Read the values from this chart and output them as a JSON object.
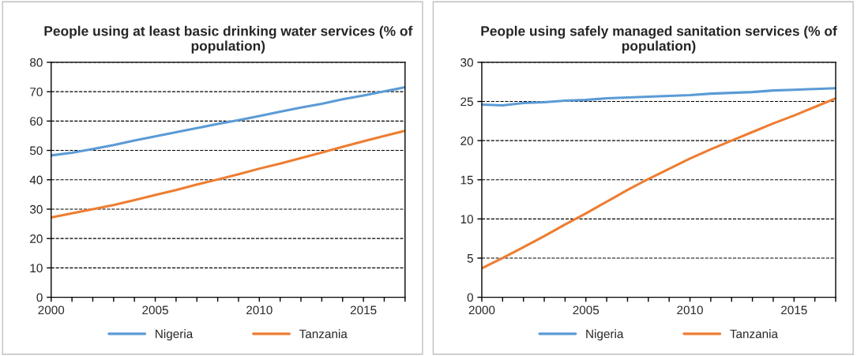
{
  "chart_data": [
    {
      "type": "line",
      "title": "People using at least basic drinking water services (% of population)",
      "x": [
        2000,
        2001,
        2002,
        2003,
        2004,
        2005,
        2006,
        2007,
        2008,
        2009,
        2010,
        2011,
        2012,
        2013,
        2014,
        2015,
        2016,
        2017
      ],
      "series": [
        {
          "name": "Nigeria",
          "color": "#5b9bd5",
          "values": [
            48.3,
            49.2,
            50.5,
            51.8,
            53.4,
            54.8,
            56.2,
            57.6,
            59.0,
            60.3,
            61.7,
            63.2,
            64.6,
            65.9,
            67.4,
            68.7,
            70.1,
            71.5
          ]
        },
        {
          "name": "Tanzania",
          "color": "#ed7d31",
          "values": [
            27.2,
            28.6,
            30.0,
            31.4,
            33.1,
            34.8,
            36.5,
            38.4,
            40.1,
            41.9,
            43.8,
            45.5,
            47.4,
            49.3,
            51.2,
            53.1,
            54.9,
            56.7
          ]
        }
      ],
      "xlim": [
        2000,
        2017
      ],
      "xticks": [
        2000,
        {
          "value": 2001,
          "label": null
        },
        {
          "value": 2002,
          "label": null
        },
        {
          "value": 2003,
          "label": null
        },
        {
          "value": 2004,
          "label": null
        },
        2005,
        {
          "value": 2006,
          "label": null
        },
        {
          "value": 2007,
          "label": null
        },
        {
          "value": 2008,
          "label": null
        },
        {
          "value": 2009,
          "label": null
        },
        2010,
        {
          "value": 2011,
          "label": null
        },
        {
          "value": 2012,
          "label": null
        },
        {
          "value": 2013,
          "label": null
        },
        {
          "value": 2014,
          "label": null
        },
        2015,
        {
          "value": 2016,
          "label": null
        },
        {
          "value": 2017,
          "label": null
        }
      ],
      "ylim": [
        0,
        80
      ],
      "yticks": [
        0,
        10,
        20,
        30,
        40,
        50,
        60,
        70,
        80
      ],
      "grid": "y",
      "legend": "bottom",
      "marker": "none",
      "line_style": "solid"
    },
    {
      "type": "line",
      "title": "People using safely managed sanitation services (% of population)",
      "x": [
        2000,
        2001,
        2002,
        2003,
        2004,
        2005,
        2006,
        2007,
        2008,
        2009,
        2010,
        2011,
        2012,
        2013,
        2014,
        2015,
        2016,
        2017
      ],
      "series": [
        {
          "name": "Nigeria",
          "color": "#5b9bd5",
          "values": [
            24.6,
            24.5,
            24.8,
            24.9,
            25.1,
            25.2,
            25.4,
            25.5,
            25.6,
            25.7,
            25.8,
            26.0,
            26.1,
            26.2,
            26.4,
            26.5,
            26.6,
            26.7
          ]
        },
        {
          "name": "Tanzania",
          "color": "#ed7d31",
          "values": [
            3.7,
            5.0,
            6.4,
            7.8,
            9.3,
            10.7,
            12.2,
            13.7,
            15.1,
            16.4,
            17.7,
            18.9,
            20.0,
            21.1,
            22.2,
            23.2,
            24.3,
            25.4
          ]
        }
      ],
      "xlim": [
        2000,
        2017
      ],
      "xticks": [
        2000,
        {
          "value": 2001,
          "label": null
        },
        {
          "value": 2002,
          "label": null
        },
        {
          "value": 2003,
          "label": null
        },
        {
          "value": 2004,
          "label": null
        },
        2005,
        {
          "value": 2006,
          "label": null
        },
        {
          "value": 2007,
          "label": null
        },
        {
          "value": 2008,
          "label": null
        },
        {
          "value": 2009,
          "label": null
        },
        2010,
        {
          "value": 2011,
          "label": null
        },
        {
          "value": 2012,
          "label": null
        },
        {
          "value": 2013,
          "label": null
        },
        {
          "value": 2014,
          "label": null
        },
        2015,
        {
          "value": 2016,
          "label": null
        },
        {
          "value": 2017,
          "label": null
        }
      ],
      "ylim": [
        0,
        30
      ],
      "yticks": [
        0,
        5,
        10,
        15,
        20,
        25,
        30
      ],
      "grid": "y",
      "legend": "bottom",
      "marker": "none",
      "line_style": "solid"
    }
  ]
}
